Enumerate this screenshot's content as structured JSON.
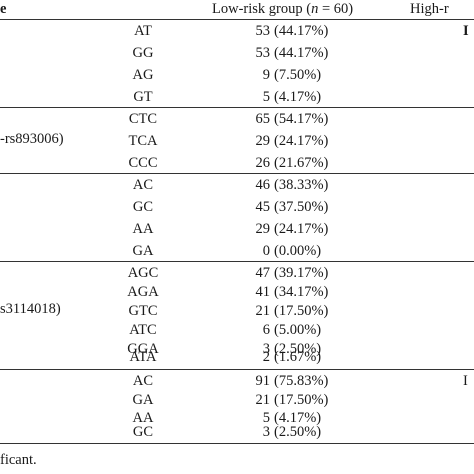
{
  "header": {
    "first_col_fragment": "e",
    "low_risk_col": "Low-risk group (",
    "low_risk_n": "n",
    "low_risk_eq": " = 60)",
    "high_risk_col": "High-r"
  },
  "groups": [
    {
      "label": "",
      "high_fragment": "I",
      "rows": [
        {
          "genotype": "AT",
          "count": "53",
          "percent": "(44.17%)"
        },
        {
          "genotype": "GG",
          "count": "53",
          "percent": "(44.17%)"
        },
        {
          "genotype": "AG",
          "count": "9",
          "percent": "(7.50%)"
        },
        {
          "genotype": "GT",
          "count": "5",
          "percent": "(4.17%)"
        }
      ]
    },
    {
      "label": "-rs893006)",
      "high_fragment": "",
      "rows": [
        {
          "genotype": "CTC",
          "count": "65",
          "percent": "(54.17%)"
        },
        {
          "genotype": "TCA",
          "count": "29",
          "percent": "(24.17%)"
        },
        {
          "genotype": "CCC",
          "count": "26",
          "percent": "(21.67%)"
        }
      ]
    },
    {
      "label": "",
      "high_fragment": "",
      "rows": [
        {
          "genotype": "AC",
          "count": "46",
          "percent": "(38.33%)"
        },
        {
          "genotype": "GC",
          "count": "45",
          "percent": "(37.50%)"
        },
        {
          "genotype": "AA",
          "count": "29",
          "percent": "(24.17%)"
        },
        {
          "genotype": "GA",
          "count": "0",
          "percent": "(0.00%)"
        }
      ]
    },
    {
      "label": "s3114018)",
      "high_fragment": "",
      "rows": [
        {
          "genotype": "AGC",
          "count": "47",
          "percent": "(39.17%)"
        },
        {
          "genotype": "AGA",
          "count": "41",
          "percent": "(34.17%)"
        },
        {
          "genotype": "GTC",
          "count": "21",
          "percent": "(17.50%)"
        },
        {
          "genotype": "ATC",
          "count": "6",
          "percent": "(5.00%)"
        },
        {
          "genotype": "GGA",
          "count": "3",
          "percent": "(2.50%)"
        },
        {
          "genotype": "ATA",
          "count": "2",
          "percent": "(1.67%)"
        }
      ]
    },
    {
      "label": "",
      "high_fragment": "I",
      "rows": [
        {
          "genotype": "AC",
          "count": "91",
          "percent": "(75.83%)"
        },
        {
          "genotype": "GA",
          "count": "21",
          "percent": "(17.50%)"
        },
        {
          "genotype": "AA",
          "count": "5",
          "percent": "(4.17%)"
        },
        {
          "genotype": "GC",
          "count": "3",
          "percent": "(2.50%)"
        }
      ]
    }
  ],
  "footnote": "ficant."
}
